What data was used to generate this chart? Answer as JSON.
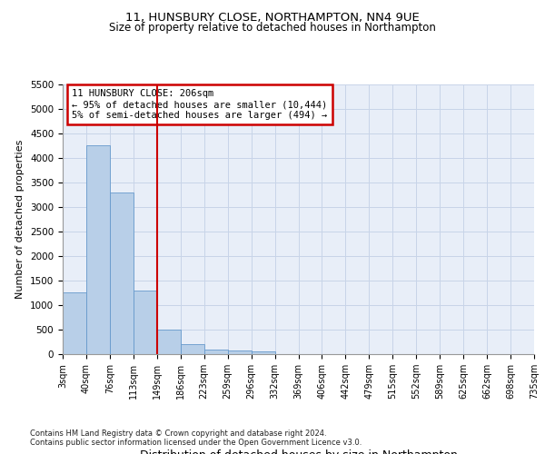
{
  "title": "11, HUNSBURY CLOSE, NORTHAMPTON, NN4 9UE",
  "subtitle": "Size of property relative to detached houses in Northampton",
  "xlabel": "Distribution of detached houses by size in Northampton",
  "ylabel": "Number of detached properties",
  "footnote1": "Contains HM Land Registry data © Crown copyright and database right 2024.",
  "footnote2": "Contains public sector information licensed under the Open Government Licence v3.0.",
  "property_label": "11 HUNSBURY CLOSE: 206sqm",
  "annotation_line1": "← 95% of detached houses are smaller (10,444)",
  "annotation_line2": "5% of semi-detached houses are larger (494) →",
  "vline_x": 4,
  "bar_color": "#b8cfe8",
  "bar_edge_color": "#6699cc",
  "vline_color": "#cc0000",
  "annotation_box_color": "#cc0000",
  "grid_color": "#c8d4e8",
  "bin_labels": [
    "3sqm",
    "40sqm",
    "76sqm",
    "113sqm",
    "149sqm",
    "186sqm",
    "223sqm",
    "259sqm",
    "296sqm",
    "332sqm",
    "369sqm",
    "406sqm",
    "442sqm",
    "479sqm",
    "515sqm",
    "552sqm",
    "589sqm",
    "625sqm",
    "662sqm",
    "698sqm",
    "735sqm"
  ],
  "bar_heights": [
    1250,
    4250,
    3300,
    1300,
    500,
    200,
    100,
    70,
    50,
    0,
    0,
    0,
    0,
    0,
    0,
    0,
    0,
    0,
    0,
    0
  ],
  "ylim": [
    0,
    5500
  ],
  "yticks": [
    0,
    500,
    1000,
    1500,
    2000,
    2500,
    3000,
    3500,
    4000,
    4500,
    5000,
    5500
  ],
  "bg_color": "#ffffff",
  "plot_bg_color": "#e8eef8"
}
